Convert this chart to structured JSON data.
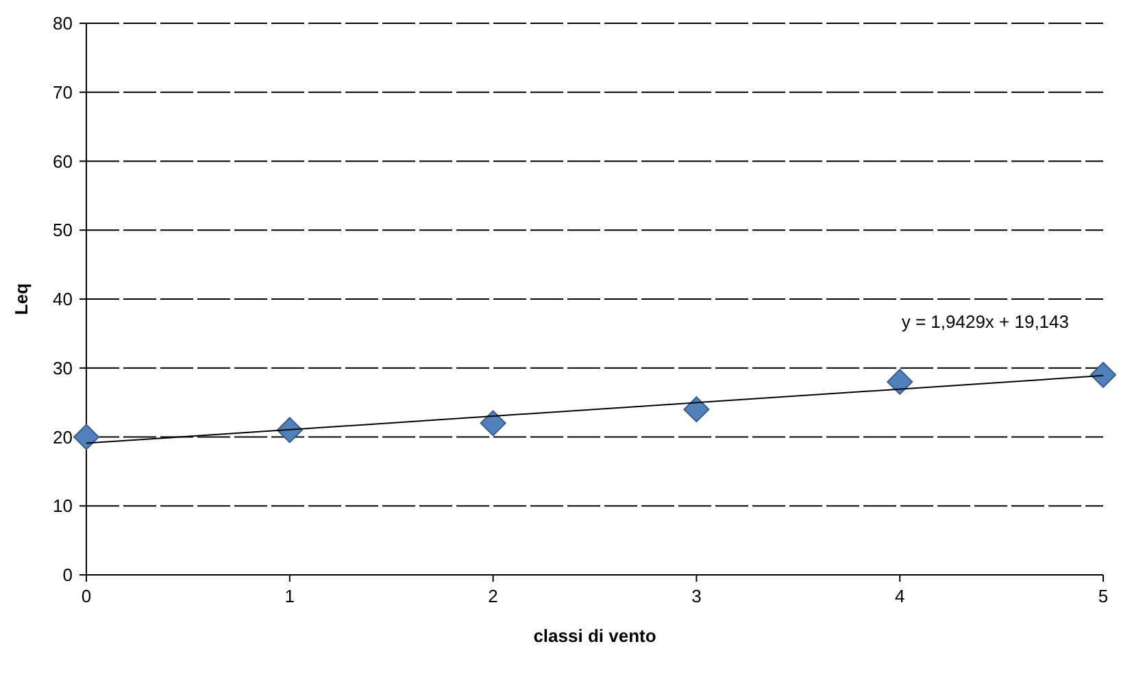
{
  "chart_data": {
    "type": "scatter",
    "xlabel": "classi di vento",
    "ylabel": "Leq",
    "xlim": [
      0,
      5
    ],
    "xticks": [
      0,
      1,
      2,
      3,
      4,
      5
    ],
    "ylim": [
      0,
      80
    ],
    "yticks": [
      0,
      10,
      20,
      30,
      40,
      50,
      60,
      70,
      80
    ],
    "grid": "y",
    "series": [
      {
        "color": "#4f81bd",
        "marker": "diamond",
        "x": [
          0,
          1,
          2,
          3,
          4,
          5
        ],
        "values": [
          20,
          21,
          22,
          24,
          28,
          29
        ]
      },
      {
        "type": "line",
        "color": "#000000",
        "marker": "none",
        "line_style": "solid",
        "x": [
          0,
          5
        ],
        "values": [
          19.1,
          28.9
        ]
      }
    ],
    "annotations": [
      "y = 1,9429x + 19,143"
    ]
  }
}
